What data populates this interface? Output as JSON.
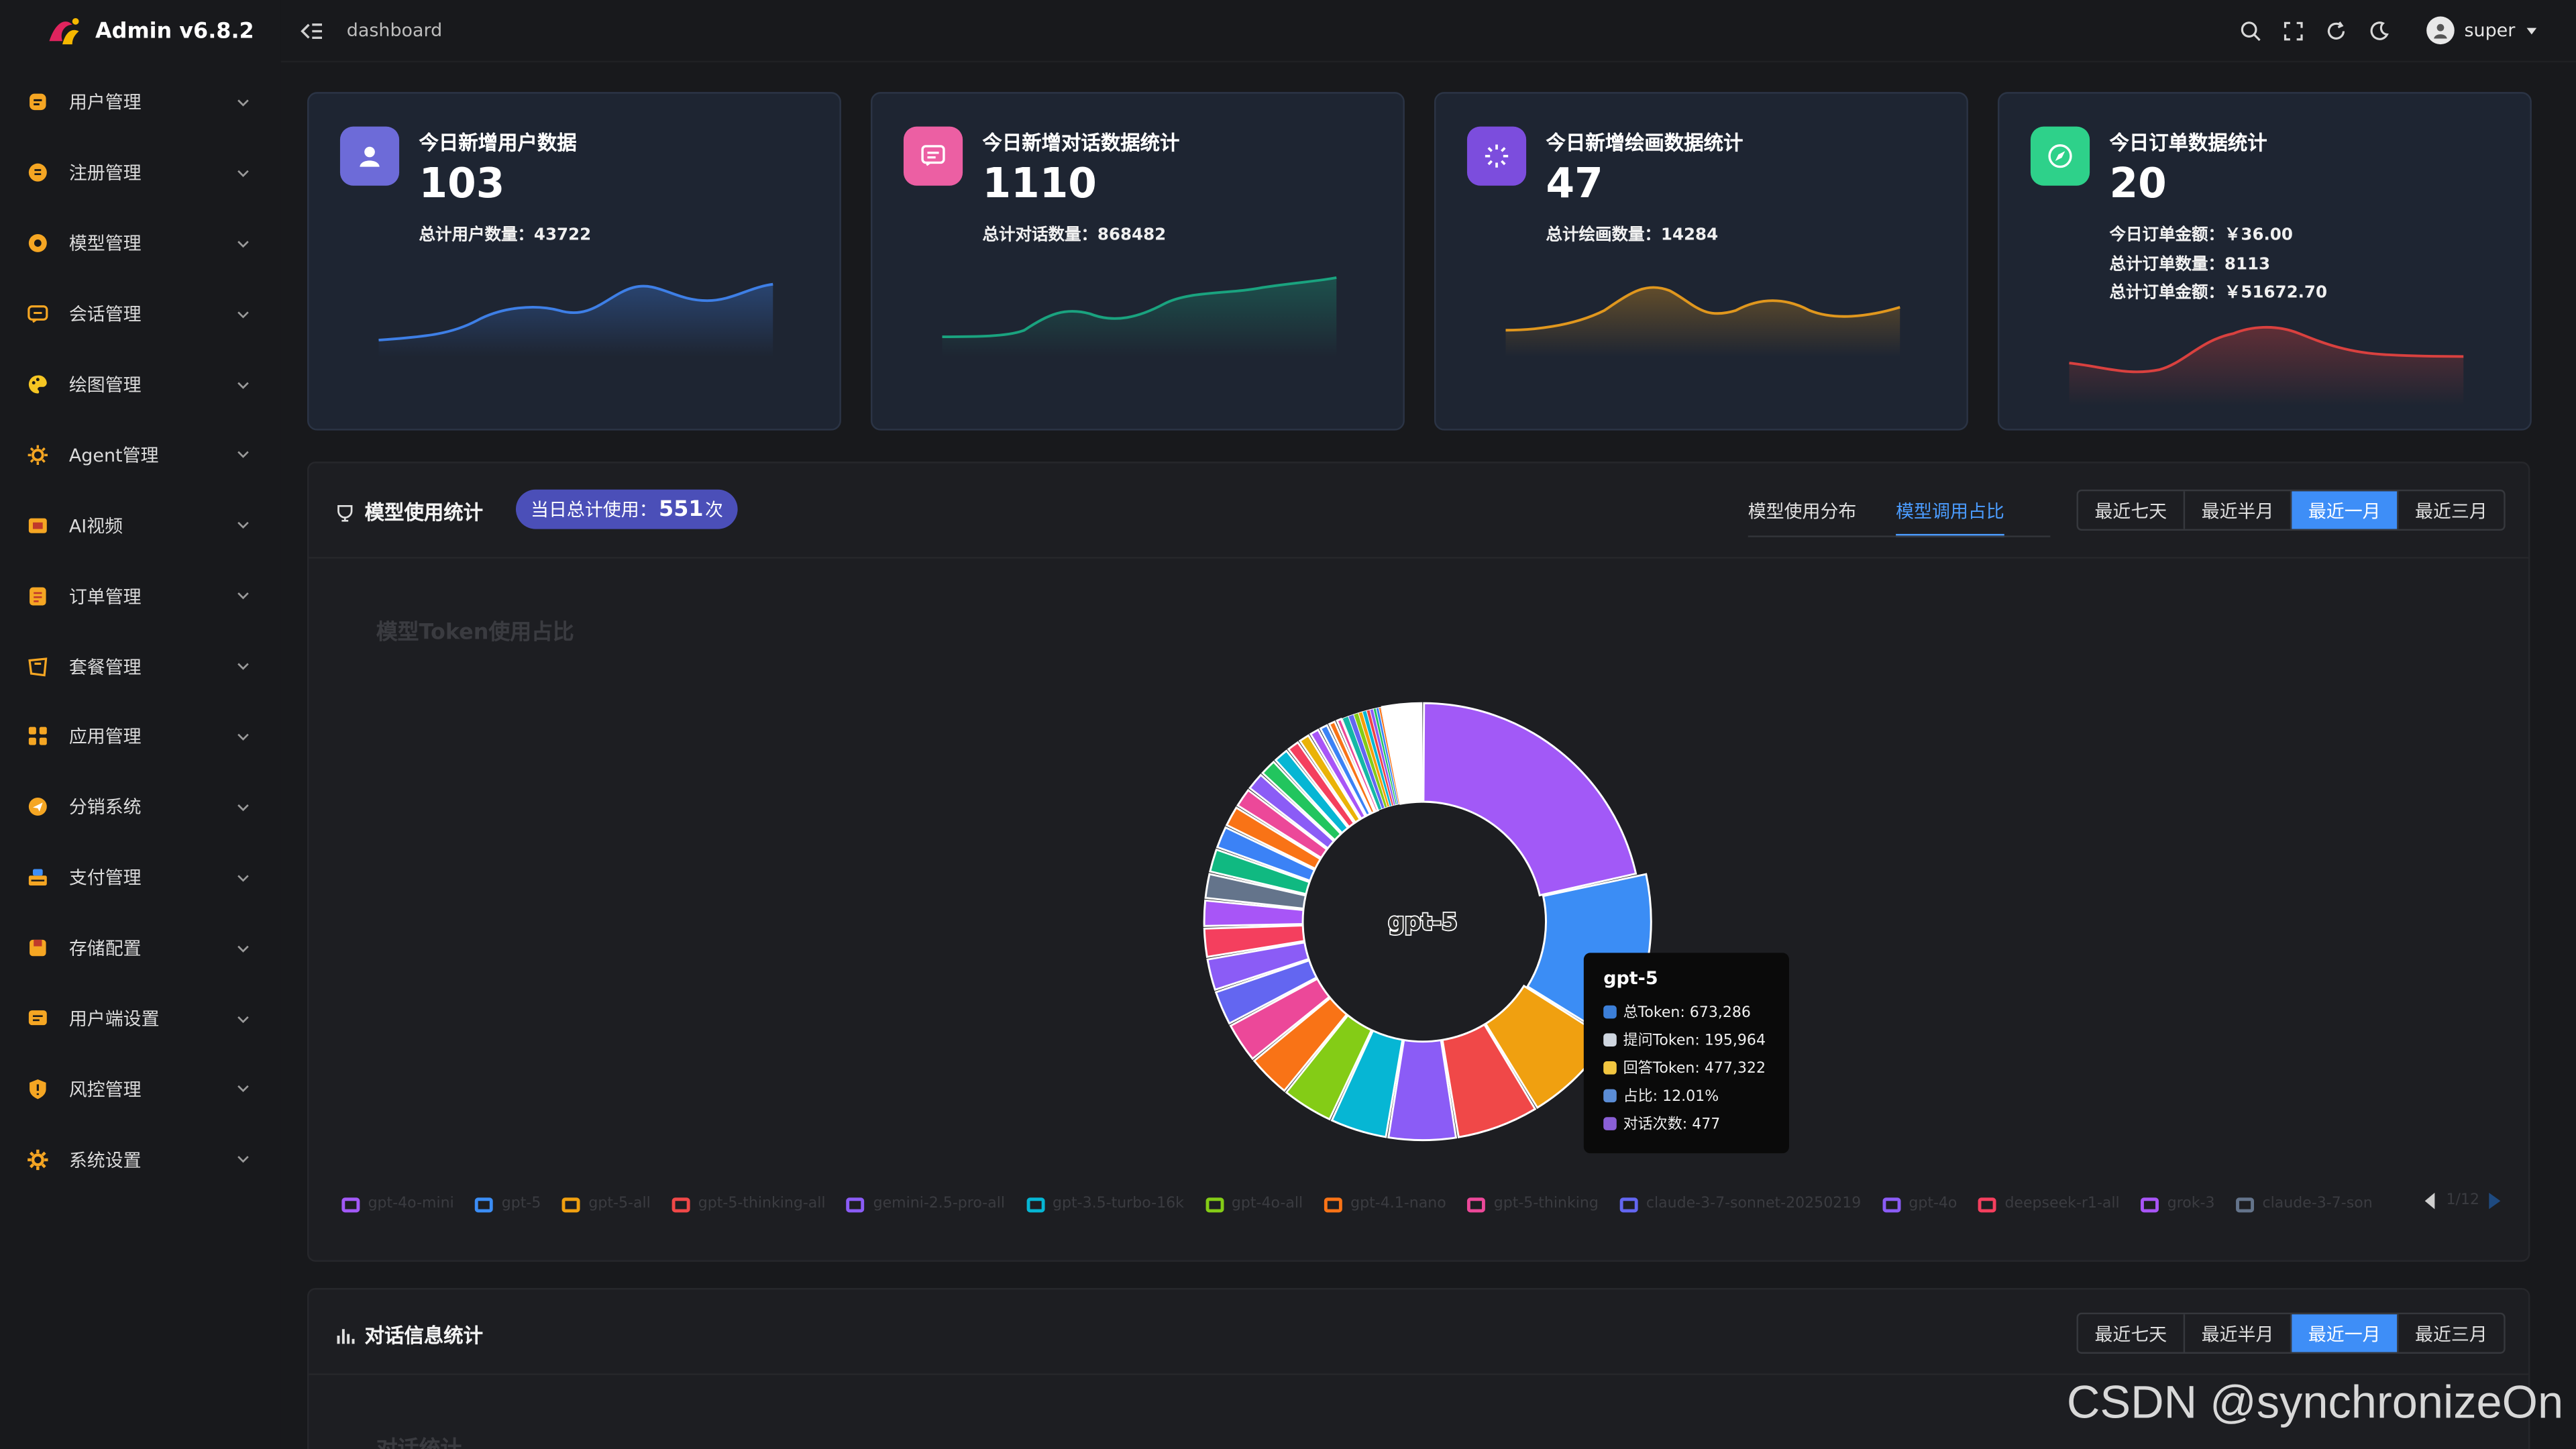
{
  "app": {
    "title": "Admin v6.8.2"
  },
  "header": {
    "breadcrumb": "dashboard",
    "username": "super"
  },
  "sidebar": {
    "items": [
      {
        "label": "用户管理",
        "icon": "user-manage-icon",
        "color": "#f5a623"
      },
      {
        "label": "注册管理",
        "icon": "register-icon",
        "color": "#f5a623"
      },
      {
        "label": "模型管理",
        "icon": "model-icon",
        "color": "#f5a623"
      },
      {
        "label": "会话管理",
        "icon": "chat-icon",
        "color": "#f5a623"
      },
      {
        "label": "绘图管理",
        "icon": "palette-icon",
        "color": "#f5c623"
      },
      {
        "label": "Agent管理",
        "icon": "agent-icon",
        "color": "#f5a623"
      },
      {
        "label": "AI视频",
        "icon": "video-icon",
        "color": "#f5a623"
      },
      {
        "label": "订单管理",
        "icon": "order-icon",
        "color": "#f5a623"
      },
      {
        "label": "套餐管理",
        "icon": "package-icon",
        "color": "#f5a623"
      },
      {
        "label": "应用管理",
        "icon": "apps-icon",
        "color": "#f5a623"
      },
      {
        "label": "分销系统",
        "icon": "distribution-icon",
        "color": "#f5a623"
      },
      {
        "label": "支付管理",
        "icon": "payment-icon",
        "color": "#f5a623"
      },
      {
        "label": "存储配置",
        "icon": "storage-icon",
        "color": "#f5a623"
      },
      {
        "label": "用户端设置",
        "icon": "client-settings-icon",
        "color": "#f5a623"
      },
      {
        "label": "风控管理",
        "icon": "shield-icon",
        "color": "#f5a623"
      },
      {
        "label": "系统设置",
        "icon": "settings-icon",
        "color": "#f5a623"
      }
    ]
  },
  "stats": {
    "cards": [
      {
        "title": "今日新增用户数据",
        "value": "103",
        "lines": [
          "总计用户数量：43722"
        ],
        "icon": "user-icon",
        "color": "#6d6bd8",
        "line_color": "#3e7fe6"
      },
      {
        "title": "今日新增对话数据统计",
        "value": "1110",
        "lines": [
          "总计对话数量：868482"
        ],
        "icon": "message-icon",
        "color": "#ec5fa3",
        "line_color": "#1aa37f"
      },
      {
        "title": "今日新增绘画数据统计",
        "value": "47",
        "lines": [
          "总计绘画数量：14284"
        ],
        "icon": "sparkle-icon",
        "color": "#7c4ddd",
        "line_color": "#e0971e"
      },
      {
        "title": "今日订单数据统计",
        "value": "20",
        "lines": [
          "今日订单金额：￥36.00",
          "总计订单数量：8113",
          "总计订单金额：￥51672.70"
        ],
        "icon": "compass-icon",
        "color": "#2ed18a",
        "line_color": "#d9413f"
      }
    ]
  },
  "model_panel": {
    "title": "模型使用统计",
    "pill_prefix": "当日总计使用：",
    "pill_value": "551",
    "pill_suffix": "次",
    "tabs": [
      "模型使用分布",
      "模型调用占比"
    ],
    "ranges": [
      "最近七天",
      "最近半月",
      "最近一月",
      "最近三月"
    ],
    "chart_title": "模型Token使用占比",
    "center_label": "gpt-5",
    "tooltip": {
      "title": "gpt-5",
      "rows": [
        {
          "text": "总Token: 673,286",
          "color": "#3c7fd8"
        },
        {
          "text": "提问Token: 195,964",
          "color": "#cfd6e0"
        },
        {
          "text": "回答Token: 477,322",
          "color": "#f2c640"
        },
        {
          "text": "占比: 12.01%",
          "color": "#5b8dd6"
        },
        {
          "text": "对话次数: 477",
          "color": "#8a5fd6"
        }
      ]
    },
    "legend": [
      {
        "name": "gpt-4o-mini",
        "color": "#a259f7"
      },
      {
        "name": "gpt-5",
        "color": "#3b8df5"
      },
      {
        "name": "gpt-5-all",
        "color": "#f0a010"
      },
      {
        "name": "gpt-5-thinking-all",
        "color": "#f04848"
      },
      {
        "name": "gemini-2.5-pro-all",
        "color": "#8b5cf6"
      },
      {
        "name": "gpt-3.5-turbo-16k",
        "color": "#06b6d4"
      },
      {
        "name": "gpt-4o-all",
        "color": "#84cc16"
      },
      {
        "name": "gpt-4.1-nano",
        "color": "#f97316"
      },
      {
        "name": "gpt-5-thinking",
        "color": "#ec4899"
      },
      {
        "name": "claude-3-7-sonnet-20250219",
        "color": "#6366f1"
      },
      {
        "name": "gpt-4o",
        "color": "#8b5cf6"
      },
      {
        "name": "deepseek-r1-all",
        "color": "#f43f5e"
      },
      {
        "name": "grok-3",
        "color": "#a855f7"
      },
      {
        "name": "claude-3-7-son",
        "color": "#64748b"
      }
    ],
    "pager": "1/12"
  },
  "chat_panel": {
    "title": "对话信息统计",
    "ranges": [
      "最近七天",
      "最近半月",
      "最近一月",
      "最近三月"
    ],
    "chart_title": "对话统计"
  },
  "chart_data": {
    "type": "pie",
    "title": "模型Token使用占比",
    "slices": [
      {
        "name": "gpt-4o-mini",
        "percent": 21.0,
        "color": "#a259f7"
      },
      {
        "name": "gpt-5",
        "percent": 12.01,
        "color": "#3b8df5"
      },
      {
        "name": "gpt-5-all",
        "percent": 7.2,
        "color": "#f0a010"
      },
      {
        "name": "gpt-5-thinking-all",
        "percent": 6.0,
        "color": "#f04848"
      },
      {
        "name": "gemini-2.5-pro-all",
        "percent": 5.0,
        "color": "#8b5cf6"
      },
      {
        "name": "gpt-3.5-turbo-16k",
        "percent": 4.2,
        "color": "#06b6d4"
      },
      {
        "name": "gpt-4o-all",
        "percent": 3.8,
        "color": "#84cc16"
      },
      {
        "name": "gpt-4.1-nano",
        "percent": 3.2,
        "color": "#f97316"
      },
      {
        "name": "gpt-5-thinking",
        "percent": 3.0,
        "color": "#ec4899"
      },
      {
        "name": "claude-3-7-sonnet-20250219",
        "percent": 2.6,
        "color": "#6366f1"
      },
      {
        "name": "gpt-4o",
        "percent": 2.4,
        "color": "#8b5cf6"
      },
      {
        "name": "deepseek-r1-all",
        "percent": 2.2,
        "color": "#f43f5e"
      },
      {
        "name": "grok-3",
        "percent": 2.0,
        "color": "#a855f7"
      },
      {
        "name": "claude-3-7-son",
        "percent": 1.9,
        "color": "#64748b"
      },
      {
        "name": "",
        "percent": 1.8,
        "color": "#10b981"
      },
      {
        "name": "",
        "percent": 1.7,
        "color": "#3b82f6"
      },
      {
        "name": "",
        "percent": 1.6,
        "color": "#f97316"
      },
      {
        "name": "",
        "percent": 1.5,
        "color": "#ec4899"
      },
      {
        "name": "",
        "percent": 1.4,
        "color": "#8b5cf6"
      },
      {
        "name": "",
        "percent": 1.3,
        "color": "#22c55e"
      },
      {
        "name": "",
        "percent": 1.2,
        "color": "#06b6d4"
      },
      {
        "name": "",
        "percent": 1.0,
        "color": "#f43f5e"
      },
      {
        "name": "",
        "percent": 0.9,
        "color": "#eab308"
      },
      {
        "name": "",
        "percent": 0.8,
        "color": "#a855f7"
      },
      {
        "name": "",
        "percent": 0.7,
        "color": "#3b82f6"
      },
      {
        "name": "",
        "percent": 0.6,
        "color": "#f97316"
      },
      {
        "name": "",
        "percent": 0.5,
        "color": "#ec4899"
      },
      {
        "name": "",
        "percent": 0.45,
        "color": "#14b8a6"
      },
      {
        "name": "",
        "percent": 0.4,
        "color": "#6366f1"
      },
      {
        "name": "",
        "percent": 0.35,
        "color": "#84cc16"
      },
      {
        "name": "",
        "percent": 0.3,
        "color": "#f59e0b"
      },
      {
        "name": "",
        "percent": 0.3,
        "color": "#06b6d4"
      },
      {
        "name": "",
        "percent": 0.25,
        "color": "#ef4444"
      },
      {
        "name": "",
        "percent": 0.25,
        "color": "#8b5cf6"
      },
      {
        "name": "",
        "percent": 0.2,
        "color": "#22c55e"
      },
      {
        "name": "",
        "percent": 0.2,
        "color": "#3b82f6"
      },
      {
        "name": "",
        "percent": 0.15,
        "color": "#f97316"
      },
      {
        "name": "",
        "percent": 2.99,
        "color": "#ffffff"
      }
    ]
  },
  "watermark": "CSDN @synchronizeOn"
}
